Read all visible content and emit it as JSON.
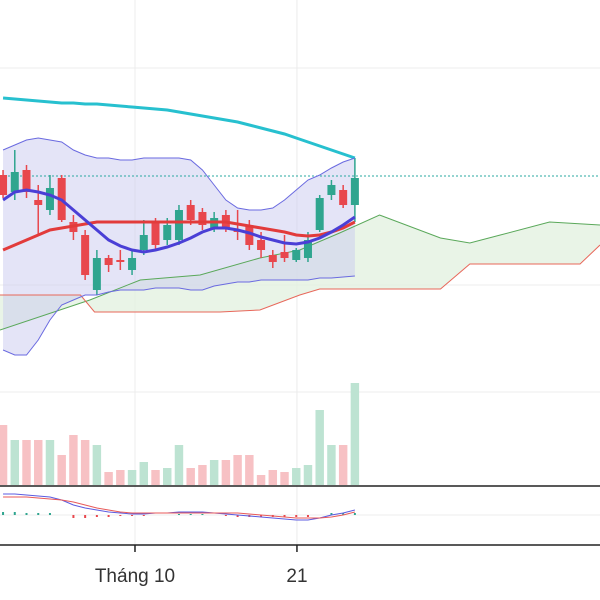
{
  "chart_data": {
    "type": "candlestick",
    "xlim": [
      -0.26,
      50.9
    ],
    "xticks": [
      {
        "value": 11.25,
        "label": "Tháng 10"
      },
      {
        "value": 25.06,
        "label": "21"
      }
    ],
    "ylim": [
      20,
      400
    ],
    "up_color": "#2fa58f",
    "down_color": "#e8474d",
    "open": [
      225,
      208,
      230,
      200,
      190,
      222,
      178,
      165,
      110,
      142,
      140,
      130,
      150,
      178,
      160,
      160,
      195,
      188,
      172,
      185,
      170,
      175,
      160,
      145,
      148,
      140,
      142,
      170,
      205,
      210,
      195
    ],
    "high": [
      230,
      250,
      235,
      215,
      225,
      225,
      185,
      170,
      150,
      145,
      150,
      150,
      180,
      182,
      182,
      195,
      200,
      192,
      188,
      190,
      190,
      180,
      168,
      150,
      165,
      152,
      168,
      205,
      220,
      215,
      242
    ],
    "low": [
      202,
      200,
      202,
      165,
      185,
      178,
      160,
      120,
      105,
      128,
      130,
      125,
      145,
      150,
      155,
      155,
      175,
      170,
      168,
      168,
      160,
      150,
      142,
      132,
      138,
      138,
      138,
      168,
      200,
      192,
      178
    ],
    "close": [
      205,
      228,
      208,
      195,
      212,
      180,
      168,
      125,
      142,
      135,
      138,
      142,
      165,
      155,
      175,
      190,
      180,
      175,
      182,
      172,
      168,
      155,
      150,
      138,
      142,
      150,
      160,
      202,
      215,
      195,
      222
    ],
    "series": [
      {
        "color": "#27c0cf",
        "width": 3,
        "values": [
          302,
          301,
          300,
          299,
          298,
          297,
          297,
          296,
          296,
          295,
          294,
          293,
          292,
          291,
          290,
          288,
          286,
          284,
          282,
          280,
          278,
          275,
          272,
          269,
          266,
          262,
          258,
          254,
          250,
          246,
          242
        ]
      },
      {
        "color": "#e23b3b",
        "width": 3,
        "values": [
          150,
          155,
          160,
          165,
          170,
          172,
          174,
          176,
          178,
          178,
          178,
          178,
          178,
          178,
          178,
          178,
          178,
          178,
          178,
          178,
          176,
          174,
          172,
          170,
          168,
          165,
          164,
          165,
          168,
          172,
          178
        ]
      },
      {
        "color": "#4a3fd6",
        "width": 3,
        "values": [
          200,
          208,
          210,
          208,
          205,
          200,
          190,
          180,
          170,
          160,
          154,
          150,
          148,
          150,
          153,
          157,
          162,
          168,
          172,
          172,
          170,
          167,
          163,
          160,
          157,
          156,
          158,
          162,
          168,
          175,
          183
        ]
      },
      {
        "color": "#6a6ae0",
        "width": 1,
        "values": [
          250,
          255,
          260,
          262,
          260,
          258,
          250,
          245,
          242,
          242,
          240,
          240,
          242,
          242,
          242,
          242,
          240,
          230,
          215,
          200,
          192,
          190,
          190,
          192,
          200,
          210,
          220,
          225,
          232,
          238,
          242
        ]
      },
      {
        "color": "#6a6ae0",
        "width": 1,
        "values": [
          50,
          45,
          45,
          60,
          80,
          95,
          100,
          105,
          105,
          108,
          110,
          110,
          110,
          112,
          112,
          112,
          110,
          110,
          114,
          116,
          118,
          118,
          120,
          120,
          120,
          120,
          120,
          122,
          122,
          123,
          124
        ]
      }
    ],
    "cloud": {
      "span_a": {
        "color": "#5aa85a",
        "x": [
          -0.26,
          7.4,
          11.7,
          16.8,
          21.9,
          25.3,
          28.7,
          32.1,
          37.3,
          39.8,
          42.4,
          46.6,
          50.9
        ],
        "values": [
          70,
          100,
          120,
          125,
          142,
          150,
          167,
          185,
          162,
          157,
          165,
          178,
          175
        ]
      },
      "span_b": {
        "color": "#e8675a",
        "x": [
          -0.26,
          6.6,
          7.8,
          18.5,
          21.9,
          25.3,
          27.0,
          37.3,
          39.8,
          49.2,
          50.9
        ],
        "values": [
          105,
          105,
          88,
          88,
          90,
          105,
          111,
          111,
          136,
          136,
          155
        ]
      }
    },
    "reference_line": {
      "value": 224,
      "color": "#2aa9a0"
    },
    "volume": {
      "ylim": [
        0,
        105
      ],
      "values": [
        60,
        45,
        45,
        45,
        45,
        30,
        50,
        45,
        40,
        13,
        15,
        15,
        23,
        15,
        17,
        40,
        17,
        20,
        25,
        25,
        30,
        30,
        10,
        15,
        13,
        17,
        20,
        75,
        40,
        40,
        102
      ]
    },
    "macd": {
      "ylim": [
        -30,
        28
      ],
      "macd": {
        "color": "#5b5be0",
        "values": [
          21,
          21,
          20,
          19,
          18,
          15,
          10,
          7,
          5,
          3,
          2,
          1,
          1,
          2,
          2,
          3,
          3,
          3,
          2,
          1,
          0,
          -1,
          -2,
          -3,
          -4,
          -5,
          -5,
          -3,
          0,
          2,
          5
        ]
      },
      "signal": {
        "color": "#e85a5a",
        "values": [
          18,
          18,
          18,
          17,
          16,
          15,
          13,
          10,
          7,
          5,
          3,
          2,
          2,
          2,
          2,
          2,
          2,
          2,
          2,
          2,
          2,
          1,
          0,
          -1,
          -2,
          -3,
          -3,
          -3,
          -2,
          0,
          3
        ]
      },
      "histogram": [
        3,
        3,
        2,
        2,
        2,
        0,
        -3,
        -3,
        -2,
        -2,
        -1,
        -1,
        -1,
        0,
        0,
        1,
        1,
        1,
        0,
        -1,
        -2,
        -2,
        -2,
        -2,
        -2,
        -2,
        -2,
        0,
        2,
        2,
        2
      ]
    }
  }
}
